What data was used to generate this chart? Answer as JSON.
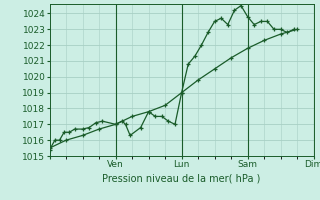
{
  "xlabel": "Pression niveau de la mer( hPa )",
  "bg_color": "#cceee4",
  "grid_color": "#a8cfc4",
  "line_color": "#1a5c2a",
  "ylim": [
    1015.0,
    1024.6
  ],
  "yticks": [
    1015,
    1016,
    1017,
    1018,
    1019,
    1020,
    1021,
    1022,
    1023,
    1024
  ],
  "xtick_positions": [
    0,
    1,
    2,
    3,
    4
  ],
  "xtick_labels": [
    "",
    "Ven",
    "Lun",
    "Sam",
    "Dim"
  ],
  "vlines": [
    1,
    2,
    3,
    4
  ],
  "line1_x": [
    0.0,
    0.08,
    0.15,
    0.22,
    0.3,
    0.38,
    0.5,
    0.6,
    0.7,
    0.8,
    1.0,
    1.1,
    1.15,
    1.22,
    1.38,
    1.5,
    1.6,
    1.7,
    1.8,
    1.9,
    2.0,
    2.1,
    2.2,
    2.3,
    2.4,
    2.5,
    2.6,
    2.7,
    2.8,
    2.9,
    3.0,
    3.1,
    3.2,
    3.3,
    3.4,
    3.5,
    3.6,
    3.7
  ],
  "line1_y": [
    1015.4,
    1016.0,
    1016.0,
    1016.5,
    1016.5,
    1016.7,
    1016.7,
    1016.8,
    1017.1,
    1017.2,
    1017.0,
    1017.2,
    1017.0,
    1016.3,
    1016.8,
    1017.8,
    1017.5,
    1017.5,
    1017.2,
    1017.0,
    1019.0,
    1020.8,
    1021.3,
    1022.0,
    1022.8,
    1023.5,
    1023.7,
    1023.3,
    1024.2,
    1024.5,
    1023.8,
    1023.3,
    1023.5,
    1023.5,
    1023.0,
    1023.0,
    1022.8,
    1023.0
  ],
  "line2_x": [
    0.0,
    0.25,
    0.5,
    0.75,
    1.0,
    1.25,
    1.5,
    1.75,
    2.0,
    2.25,
    2.5,
    2.75,
    3.0,
    3.25,
    3.5,
    3.75
  ],
  "line2_y": [
    1015.5,
    1016.0,
    1016.3,
    1016.7,
    1017.0,
    1017.5,
    1017.8,
    1018.2,
    1019.0,
    1019.8,
    1020.5,
    1021.2,
    1021.8,
    1022.3,
    1022.7,
    1023.0
  ]
}
